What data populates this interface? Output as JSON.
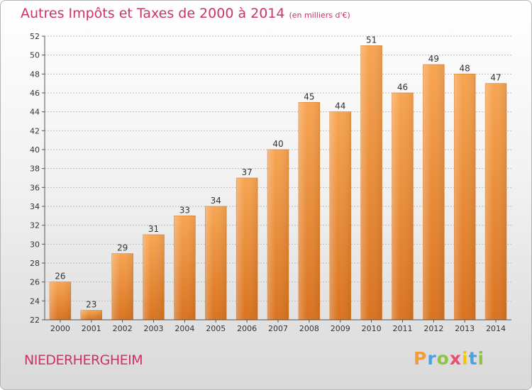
{
  "title": "Autres Impôts et Taxes de 2000 à 2014",
  "subtitle": "(en milliers d'€)",
  "commune": "NIEDERHERGHEIM",
  "logo": {
    "letters": [
      "P",
      "r",
      "o",
      "x",
      "i",
      "t",
      "i"
    ],
    "colors": [
      "#f29c38",
      "#4aa3df",
      "#8cc63f",
      "#e94e77",
      "#f7c600",
      "#4aa3df",
      "#8cc63f"
    ]
  },
  "colors": {
    "bar": "#f0903a",
    "bar_dark": "#d97320",
    "accent": "#cc3366"
  },
  "chart_data": {
    "type": "bar",
    "title": "Autres Impôts et Taxes de 2000 à 2014",
    "subtitle": "(en milliers d'€)",
    "xlabel": "",
    "ylabel": "",
    "categories": [
      "2000",
      "2001",
      "2002",
      "2003",
      "2004",
      "2005",
      "2006",
      "2007",
      "2008",
      "2009",
      "2010",
      "2011",
      "2012",
      "2013",
      "2014"
    ],
    "values": [
      26,
      23,
      29,
      31,
      33,
      34,
      37,
      40,
      45,
      44,
      51,
      46,
      49,
      48,
      47
    ],
    "ylim": [
      22,
      52
    ],
    "yticks": [
      22,
      24,
      26,
      28,
      30,
      32,
      34,
      36,
      38,
      40,
      42,
      44,
      46,
      48,
      50,
      52
    ],
    "grid": true
  }
}
